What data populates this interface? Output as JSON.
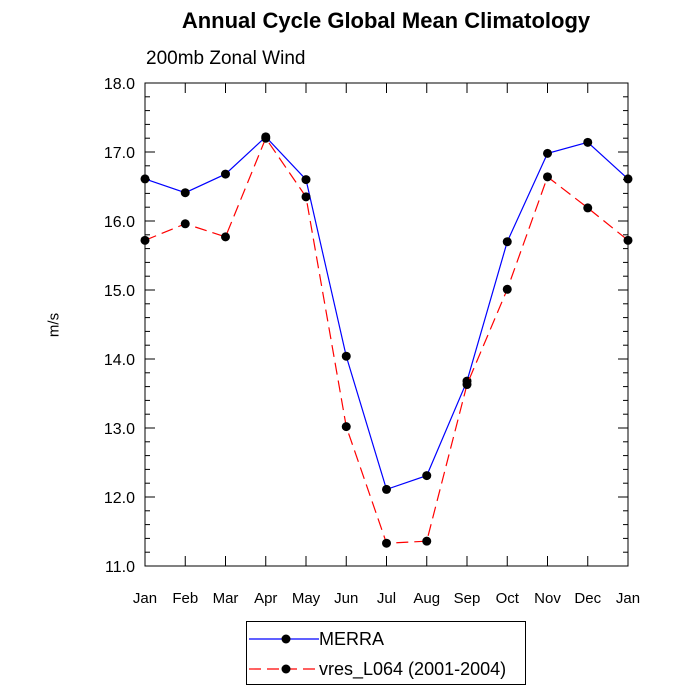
{
  "chart_data": {
    "type": "line",
    "title": "Annual Cycle Global Mean Climatology",
    "subtitle": "200mb Zonal Wind",
    "ylabel": "m/s",
    "xlabel": "",
    "categories": [
      "Jan",
      "Feb",
      "Mar",
      "Apr",
      "May",
      "Jun",
      "Jul",
      "Aug",
      "Sep",
      "Oct",
      "Nov",
      "Dec",
      "Jan"
    ],
    "ylim": [
      11.0,
      18.0
    ],
    "yticks": [
      "11.0",
      "12.0",
      "13.0",
      "14.0",
      "15.0",
      "16.0",
      "17.0",
      "18.0"
    ],
    "grid": false,
    "legend_position": "bottom",
    "series": [
      {
        "name": "MERRA",
        "color": "#0000ff",
        "line_style": "solid",
        "marker": "circle",
        "values": [
          16.61,
          16.41,
          16.68,
          17.22,
          16.6,
          14.04,
          12.11,
          12.31,
          13.68,
          15.7,
          16.98,
          17.14,
          16.61
        ]
      },
      {
        "name": "vres_L064 (2001-2004)",
        "color": "#ff0000",
        "line_style": "dashed",
        "marker": "circle",
        "values": [
          15.72,
          15.96,
          15.77,
          17.2,
          16.35,
          13.02,
          11.33,
          11.36,
          13.63,
          15.01,
          16.64,
          16.19,
          15.72
        ]
      }
    ]
  }
}
